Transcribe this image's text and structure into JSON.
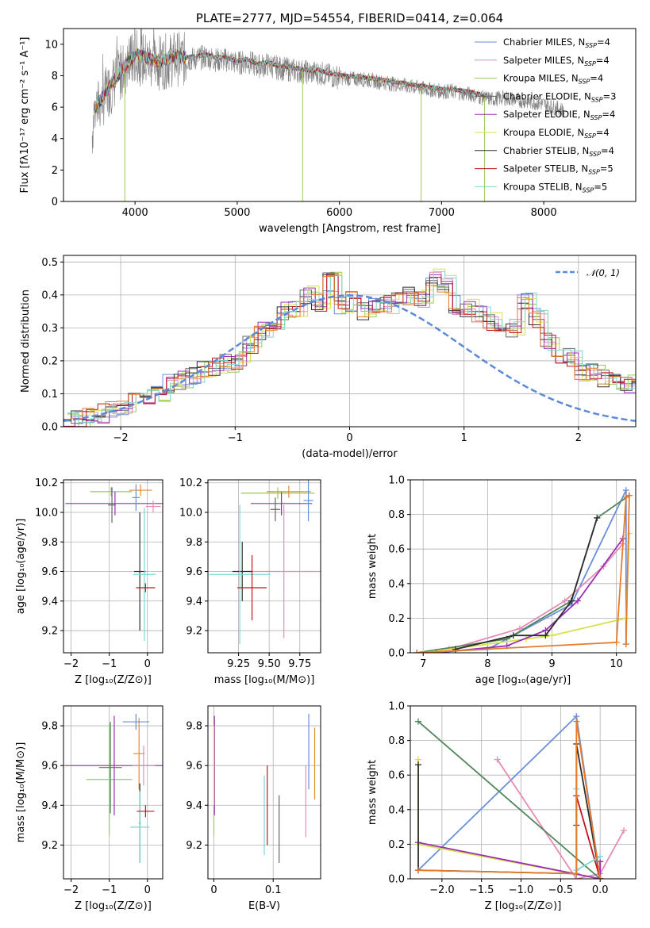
{
  "chart_data": [
    {
      "id": "spectrum",
      "type": "line",
      "title": "PLATE=2777, MJD=54554, FIBERID=0414, z=0.064",
      "xlabel": "wavelength [Angstrom, rest frame]",
      "ylabel": "Flux [fλ10⁻¹⁷ erg cm⁻² s⁻¹ A⁻¹]",
      "xlim": [
        3300,
        8900
      ],
      "ylim": [
        0,
        11
      ],
      "xticks": [
        4000,
        5000,
        6000,
        7000,
        8000
      ],
      "yticks": [
        0,
        2,
        4,
        6,
        8,
        10
      ],
      "grid": false,
      "legend_position": "top-right",
      "observed": {
        "color": "#808080",
        "x": [
          3580,
          3600,
          3650,
          3700,
          3750,
          3800,
          3850,
          3900,
          3950,
          4000,
          4100,
          4200,
          4300,
          4400,
          4500,
          4600,
          4700,
          4800,
          4900,
          5000,
          5100,
          5200,
          5300,
          5400,
          5500,
          5600,
          5700,
          5800,
          5900,
          6000,
          6100,
          6200,
          6300,
          6400,
          6500,
          6600,
          6700,
          6800,
          6900,
          7000,
          7100,
          7200,
          7300,
          7400,
          7500,
          7600,
          7700,
          7800,
          7900,
          8000,
          8100,
          8200
        ],
        "y": [
          4.2,
          5.8,
          6.2,
          6.6,
          7.2,
          7.6,
          8.0,
          8.5,
          8.8,
          9.2,
          9.0,
          8.8,
          8.9,
          9.1,
          9.0,
          9.1,
          9.2,
          9.0,
          9.0,
          8.8,
          8.9,
          8.6,
          8.7,
          8.5,
          8.4,
          8.3,
          8.2,
          8.2,
          8.0,
          7.9,
          7.8,
          7.8,
          7.7,
          7.6,
          7.5,
          7.4,
          7.3,
          7.2,
          7.1,
          7.0,
          7.0,
          6.9,
          6.8,
          6.6,
          6.5,
          6.6,
          6.5,
          6.4,
          6.3,
          6.2,
          6.0,
          5.8
        ]
      },
      "series": [
        {
          "name": "Chabrier MILES, N_SSP=4",
          "color": "#6a8fd8"
        },
        {
          "name": "Salpeter MILES, N_SSP=4",
          "color": "#e68bb5"
        },
        {
          "name": "Kroupa MILES, N_SSP=4",
          "color": "#9acb5a"
        },
        {
          "name": "Chabrier ELODIE, N_SSP=3",
          "color": "#666666"
        },
        {
          "name": "Salpeter ELODIE, N_SSP=4",
          "color": "#9b2fb4"
        },
        {
          "name": "Kroupa ELODIE, N_SSP=4",
          "color": "#d9e04a"
        },
        {
          "name": "Chabrier STELIB, N_SSP=4",
          "color": "#2e2e2e"
        },
        {
          "name": "Salpeter STELIB, N_SSP=5",
          "color": "#c0161e"
        },
        {
          "name": "Kroupa STELIB, N_SSP=5",
          "color": "#7fd6d6"
        }
      ],
      "legend_labels": [
        {
          "name": "Chabrier MILES, N",
          "sub": "SSP",
          "tail": "=4"
        },
        {
          "name": "Salpeter MILES, N",
          "sub": "SSP",
          "tail": "=4"
        },
        {
          "name": "Kroupa MILES, N",
          "sub": "SSP",
          "tail": "=4"
        },
        {
          "name": "Chabrier ELODIE, N",
          "sub": "SSP",
          "tail": "=3"
        },
        {
          "name": "Salpeter ELODIE, N",
          "sub": "SSP",
          "tail": "=4"
        },
        {
          "name": "Kroupa ELODIE, N",
          "sub": "SSP",
          "tail": "=4"
        },
        {
          "name": "Chabrier STELIB, N",
          "sub": "SSP",
          "tail": "=4"
        },
        {
          "name": "Salpeter STELIB, N",
          "sub": "SSP",
          "tail": "=5"
        },
        {
          "name": "Kroupa STELIB, N",
          "sub": "SSP",
          "tail": "=5"
        }
      ]
    },
    {
      "id": "residuals",
      "type": "line",
      "xlabel": "(data-model)/error",
      "ylabel": "Normed distribution",
      "xlim": [
        -2.5,
        2.5
      ],
      "ylim": [
        0,
        0.52
      ],
      "xticks": [
        -2,
        -1,
        0,
        1,
        2
      ],
      "yticks": [
        0.0,
        0.1,
        0.2,
        0.3,
        0.4,
        0.5
      ],
      "grid": true,
      "legend_position": "top-right",
      "legend_label": "𝒩(0, 1)",
      "gaussian_color": "#5b8ad8",
      "bin_width": 0.1,
      "histogram_template": [
        0.02,
        0.025,
        0.03,
        0.04,
        0.05,
        0.065,
        0.085,
        0.09,
        0.1,
        0.13,
        0.14,
        0.15,
        0.17,
        0.185,
        0.19,
        0.2,
        0.25,
        0.29,
        0.3,
        0.35,
        0.36,
        0.4,
        0.38,
        0.44,
        0.37,
        0.38,
        0.35,
        0.36,
        0.37,
        0.38,
        0.4,
        0.39,
        0.45,
        0.43,
        0.37,
        0.36,
        0.34,
        0.32,
        0.31,
        0.3,
        0.38,
        0.33,
        0.26,
        0.22,
        0.21,
        0.16,
        0.17,
        0.15,
        0.14,
        0.13,
        0.12,
        0.1,
        0.08,
        0.08,
        0.06,
        0.05,
        0.04,
        0.03,
        0.03,
        0.03
      ],
      "histogram_start": -2.5
    },
    {
      "id": "age-vs-Z",
      "type": "scatter",
      "xlabel": "Z [log₁₀(Z/Z⊙)]",
      "ylabel": "age  [log₁₀(age/yr)]",
      "xlim": [
        -2.2,
        0.4
      ],
      "ylim": [
        9.05,
        10.22
      ],
      "xticks": [
        -2,
        -1,
        0
      ],
      "yticks": [
        9.2,
        9.4,
        9.6,
        9.8,
        10.0,
        10.2
      ],
      "grid": true,
      "points": [
        {
          "x": -0.95,
          "y": 10.14,
          "xerr": 0.55,
          "yerr": 0.03,
          "color": "#9acb5a"
        },
        {
          "x": -0.85,
          "y": 10.06,
          "xerr": 1.3,
          "yerr": 0.08,
          "color": "#9b2fb4"
        },
        {
          "x": -0.18,
          "y": 10.15,
          "xerr": 0.3,
          "yerr": 0.04,
          "color": "#e68b2c"
        },
        {
          "x": -0.3,
          "y": 10.1,
          "xerr": 0.1,
          "yerr": 0.09,
          "color": "#6a8fd8"
        },
        {
          "x": 0.15,
          "y": 10.04,
          "xerr": 0.2,
          "yerr": 0.04,
          "color": "#e68bb5"
        },
        {
          "x": -0.2,
          "y": 9.6,
          "xerr": 0.15,
          "yerr": 0.4,
          "color": "#2e2e2e"
        },
        {
          "x": -0.08,
          "y": 9.58,
          "xerr": 0.3,
          "yerr": 0.45,
          "color": "#7fd6d6"
        },
        {
          "x": -0.05,
          "y": 9.49,
          "xerr": 0.25,
          "yerr": 0.03,
          "color": "#c0161e"
        },
        {
          "x": -0.93,
          "y": 10.05,
          "xerr": 0.1,
          "yerr": 0.12,
          "color": "#666666"
        }
      ]
    },
    {
      "id": "age-vs-mass",
      "type": "scatter",
      "xlabel": "mass [log₁₀(M/M⊙)]",
      "ylabel": "",
      "xlim": [
        9.0,
        9.92
      ],
      "ylim": [
        9.05,
        10.22
      ],
      "xticks": [
        9.25,
        9.5,
        9.75
      ],
      "xtick_labels": [
        "9.25",
        "9.50",
        "9.75"
      ],
      "yticks": [
        9.2,
        9.4,
        9.6,
        9.8,
        10.0,
        10.2
      ],
      "grid": true,
      "points": [
        {
          "x": 9.57,
          "y": 10.13,
          "xerr": 0.3,
          "yerr": 0.04,
          "color": "#9acb5a"
        },
        {
          "x": 9.6,
          "y": 10.06,
          "xerr": 0.25,
          "yerr": 0.08,
          "color": "#9b2fb4"
        },
        {
          "x": 9.66,
          "y": 10.14,
          "xerr": 0.18,
          "yerr": 0.04,
          "color": "#e68b2c"
        },
        {
          "x": 9.82,
          "y": 10.08,
          "xerr": 0.04,
          "yerr": 0.14,
          "color": "#6a8fd8"
        },
        {
          "x": 9.62,
          "y": 9.6,
          "xerr": 0.3,
          "yerr": 0.45,
          "color": "#e68bb5"
        },
        {
          "x": 9.28,
          "y": 9.6,
          "xerr": 0.08,
          "yerr": 0.2,
          "color": "#2e2e2e"
        },
        {
          "x": 9.26,
          "y": 9.58,
          "xerr": 0.25,
          "yerr": 0.47,
          "color": "#7fd6d6"
        },
        {
          "x": 9.36,
          "y": 9.49,
          "xerr": 0.12,
          "yerr": 0.22,
          "color": "#c0161e"
        },
        {
          "x": 9.55,
          "y": 10.02,
          "xerr": 0.04,
          "yerr": 0.08,
          "color": "#666666"
        }
      ]
    },
    {
      "id": "mass-weight-vs-age",
      "type": "line",
      "xlabel": "age  [log₁₀(age/yr)]",
      "ylabel": "mass weight",
      "xlim": [
        6.8,
        10.3
      ],
      "ylim": [
        0,
        1.0
      ],
      "xticks": [
        7,
        8,
        9,
        10
      ],
      "yticks": [
        0.0,
        0.2,
        0.4,
        0.6,
        0.8,
        1.0
      ],
      "grid": true,
      "series": [
        {
          "color": "#6a8fd8",
          "x": [
            6.9,
            8.0,
            9.3,
            10.15,
            10.15
          ],
          "y": [
            0.0,
            0.02,
            0.28,
            0.94,
            0.05
          ]
        },
        {
          "color": "#e68bb5",
          "x": [
            7.4,
            8.5,
            9.2,
            9.8,
            10.1
          ],
          "y": [
            0.02,
            0.14,
            0.3,
            0.5,
            0.63
          ]
        },
        {
          "color": "#51855c",
          "x": [
            6.9,
            8.3,
            9.3,
            9.7,
            10.2
          ],
          "y": [
            0.0,
            0.08,
            0.3,
            0.78,
            0.91
          ]
        },
        {
          "color": "#d9e04a",
          "x": [
            7.0,
            8.6,
            9.0,
            10.15,
            10.2
          ],
          "y": [
            0.0,
            0.08,
            0.1,
            0.2,
            0.69
          ]
        },
        {
          "color": "#9b2fb4",
          "x": [
            7.2,
            8.3,
            8.9,
            9.4,
            10.1
          ],
          "y": [
            0.0,
            0.04,
            0.13,
            0.3,
            0.66
          ]
        },
        {
          "color": "#2e2e2e",
          "x": [
            7.5,
            8.4,
            8.9,
            9.3,
            9.7
          ],
          "y": [
            0.02,
            0.1,
            0.1,
            0.3,
            0.78
          ]
        },
        {
          "color": "#e67b2c",
          "x": [
            6.9,
            10.0,
            10.15,
            10.2,
            10.15
          ],
          "y": [
            0.0,
            0.06,
            0.9,
            0.91,
            0.05
          ]
        }
      ]
    },
    {
      "id": "mass-vs-Z",
      "type": "scatter",
      "xlabel": "Z [log₁₀(Z/Z⊙)]",
      "ylabel": "mass [log₁₀(M/M⊙)]",
      "xlim": [
        -2.2,
        0.4
      ],
      "ylim": [
        9.03,
        9.9
      ],
      "xticks": [
        -2,
        -1,
        0
      ],
      "yticks": [
        9.2,
        9.4,
        9.6,
        9.8
      ],
      "grid": true,
      "points": [
        {
          "x": -1.0,
          "y": 9.53,
          "xerr": 0.6,
          "yerr": 0.28,
          "color": "#9acb5a"
        },
        {
          "x": -0.87,
          "y": 9.6,
          "xerr": 1.3,
          "yerr": 0.25,
          "color": "#9b2fb4"
        },
        {
          "x": -0.22,
          "y": 9.66,
          "xerr": 0.15,
          "yerr": 0.18,
          "color": "#e68b2c"
        },
        {
          "x": -0.3,
          "y": 9.82,
          "xerr": 0.35,
          "yerr": 0.04,
          "color": "#6a8fd8"
        },
        {
          "x": -0.1,
          "y": 9.6,
          "xerr": 0.3,
          "yerr": 0.1,
          "color": "#e68bb5"
        },
        {
          "x": -0.2,
          "y": 9.31,
          "xerr": 0.02,
          "yerr": 0.2,
          "color": "#2e2e2e"
        },
        {
          "x": -0.2,
          "y": 9.29,
          "xerr": 0.25,
          "yerr": 0.18,
          "color": "#7fd6d6"
        },
        {
          "x": -0.05,
          "y": 9.37,
          "xerr": 0.23,
          "yerr": 0.03,
          "color": "#c0161e"
        },
        {
          "x": -0.97,
          "y": 9.59,
          "xerr": 0.3,
          "yerr": 0.23,
          "color": "#51855c"
        }
      ]
    },
    {
      "id": "mass-vs-ebv",
      "type": "scatter",
      "xlabel": "E(B-V)",
      "ylabel": "",
      "xlim": [
        -0.01,
        0.18
      ],
      "ylim": [
        9.03,
        9.9
      ],
      "xticks": [
        0.0,
        0.1
      ],
      "yticks": [
        9.2,
        9.4,
        9.6,
        9.8
      ],
      "grid": true,
      "points": [
        {
          "x": 0.0,
          "y": 9.55,
          "yerr": 0.3,
          "color": "#9acb5a"
        },
        {
          "x": 0.001,
          "y": 9.6,
          "yerr": 0.25,
          "color": "#9b2fb4"
        },
        {
          "x": 0.0,
          "y": 9.6,
          "yerr": 0.2,
          "color": "#d9e04a"
        },
        {
          "x": 0.17,
          "y": 9.61,
          "yerr": 0.18,
          "color": "#e68b2c"
        },
        {
          "x": 0.16,
          "y": 9.67,
          "yerr": 0.19,
          "color": "#6a8fd8"
        },
        {
          "x": 0.155,
          "y": 9.42,
          "yerr": 0.18,
          "color": "#e68bb5"
        },
        {
          "x": 0.085,
          "y": 9.35,
          "yerr": 0.2,
          "color": "#7fd6d6"
        },
        {
          "x": 0.09,
          "y": 9.4,
          "yerr": 0.2,
          "color": "#c0161e"
        },
        {
          "x": 0.11,
          "y": 9.28,
          "yerr": 0.17,
          "color": "#666666"
        }
      ]
    },
    {
      "id": "mass-weight-vs-Z",
      "type": "line",
      "xlabel": "Z [log₁₀(Z/Z⊙)]",
      "ylabel": "mass weight",
      "xlim": [
        -2.4,
        0.45
      ],
      "ylim": [
        0,
        1.0
      ],
      "xticks": [
        -2.0,
        -1.5,
        -1.0,
        -0.5,
        0.0
      ],
      "xtick_labels": [
        "−2.0",
        "−1.5",
        "−1.0",
        "−0.5",
        "0.0"
      ],
      "yticks": [
        0.0,
        0.2,
        0.4,
        0.6,
        0.8,
        1.0
      ],
      "grid": true,
      "series": [
        {
          "color": "#6a8fd8",
          "x": [
            -2.3,
            -0.3,
            0.0
          ],
          "y": [
            0.05,
            0.94,
            0.0
          ]
        },
        {
          "color": "#e68bb5",
          "x": [
            -1.3,
            -0.3,
            0.0,
            0.3
          ],
          "y": [
            0.69,
            0.0,
            0.03,
            0.28
          ]
        },
        {
          "color": "#51855c",
          "x": [
            -2.3,
            0.0,
            0.0
          ],
          "y": [
            0.91,
            0.0,
            0.1
          ]
        },
        {
          "color": "#d9e04a",
          "x": [
            -2.3,
            -2.3,
            0.0
          ],
          "y": [
            0.69,
            0.2,
            0.0
          ]
        },
        {
          "color": "#9b2fb4",
          "x": [
            -2.3,
            0.0,
            0.0
          ],
          "y": [
            0.21,
            0.0,
            0.1
          ]
        },
        {
          "color": "#2e2e2e",
          "x": [
            -2.3,
            -2.3,
            -0.3,
            -0.3,
            0.0
          ],
          "y": [
            0.66,
            0.05,
            0.03,
            0.78,
            0.0
          ]
        },
        {
          "color": "#c0161e",
          "x": [
            -0.3,
            -0.3,
            0.0
          ],
          "y": [
            0.31,
            0.48,
            0.0
          ]
        },
        {
          "color": "#7fd6d6",
          "x": [
            -0.3,
            -0.3,
            0.0
          ],
          "y": [
            0.52,
            0.05,
            0.13
          ]
        },
        {
          "color": "#e67b2c",
          "x": [
            -2.3,
            -0.3,
            -0.3,
            0.0
          ],
          "y": [
            0.05,
            0.03,
            0.91,
            0.0
          ]
        }
      ]
    }
  ]
}
